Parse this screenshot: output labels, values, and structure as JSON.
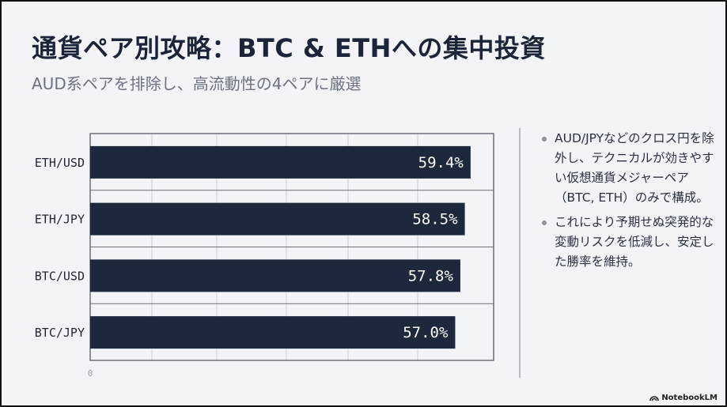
{
  "title": "通貨ペア別攻略：BTC & ETHへの集中投資",
  "subtitle": "AUD系ペアを排除し、高流動性の4ペアに厳選",
  "bullets": [
    "AUD/JPYなどのクロス円を除外し、テクニカルが効きやすい仮想通貨メジャーペア（BTC, ETH）のみで構成。",
    "これにより予期せぬ突発的な変動リスクを低減し、安定した勝率を維持。"
  ],
  "branding": {
    "label": "NotebookLM",
    "icon": "notebooklm-logo-icon"
  },
  "colors": {
    "bar": "#1d283c",
    "background": "#f2f4f8",
    "grid": "#c9ced6"
  },
  "chart_data": {
    "type": "bar",
    "orientation": "horizontal",
    "categories": [
      "ETH/USD",
      "ETH/JPY",
      "BTC/USD",
      "BTC/JPY"
    ],
    "values": [
      59.4,
      58.5,
      57.8,
      57.0
    ],
    "data_labels": [
      "59.4%",
      "58.5%",
      "57.8%",
      "57.0%"
    ],
    "xlim": [
      0,
      63
    ],
    "x_tick_labels": [
      "0"
    ],
    "grid": true,
    "title": "",
    "xlabel": "",
    "ylabel": ""
  }
}
